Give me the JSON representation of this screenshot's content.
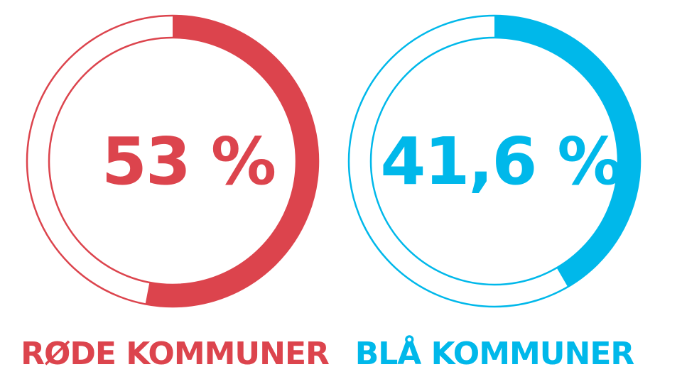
{
  "chart_data": [
    {
      "type": "pie",
      "value": 53,
      "value_label": "53 %",
      "category_label": "RØDE KOMMUNER",
      "color": "#dc444d"
    },
    {
      "type": "pie",
      "value": 41.6,
      "value_label": "41,6 %",
      "category_label": "BLÅ KOMMUNER",
      "color": "#00b8ea"
    }
  ]
}
